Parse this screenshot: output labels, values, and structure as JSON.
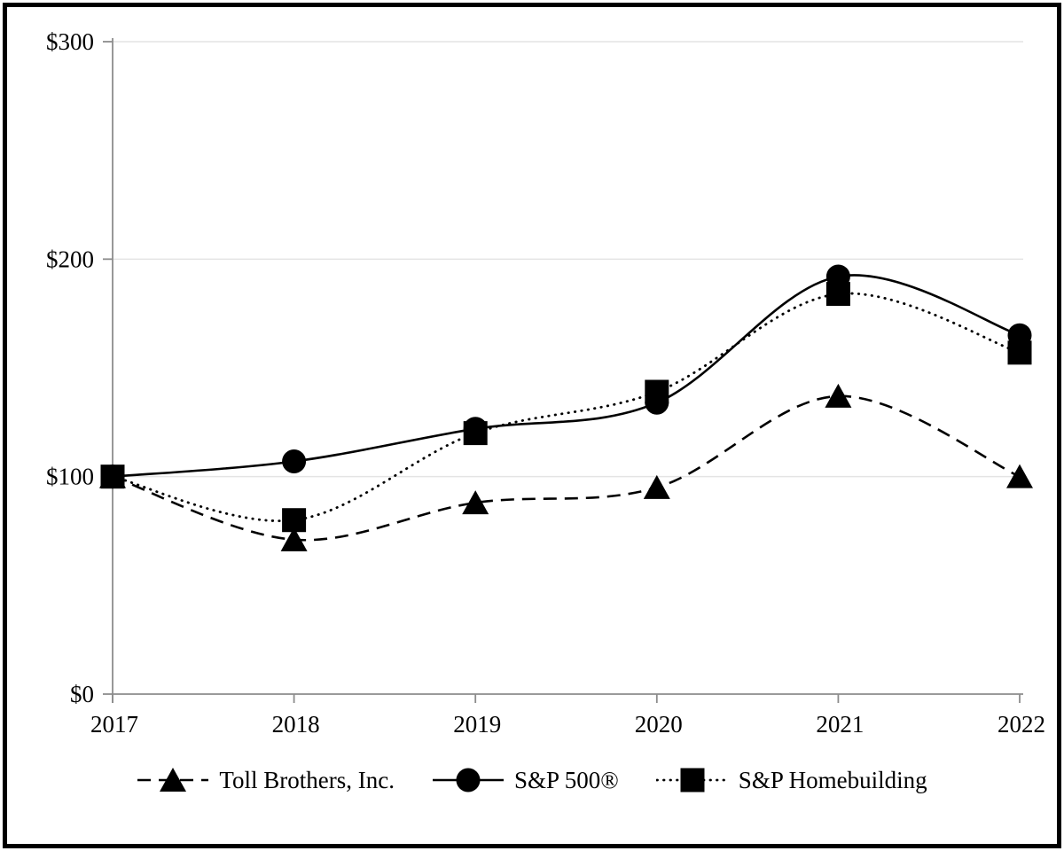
{
  "chart_data": {
    "type": "line",
    "title": "",
    "categories": [
      "2017",
      "2018",
      "2019",
      "2020",
      "2021",
      "2022"
    ],
    "y_ticks": [
      {
        "label": "$0",
        "value": 0
      },
      {
        "label": "$100",
        "value": 100
      },
      {
        "label": "$200",
        "value": 200
      },
      {
        "label": "$300",
        "value": 300
      }
    ],
    "ylim": [
      0,
      300
    ],
    "grid": "horizontal-only",
    "legend_position": "bottom-center",
    "series": [
      {
        "name": "Toll Brothers, Inc.",
        "marker": "triangle",
        "line_style": "dashed",
        "color": "#000000",
        "values": [
          100,
          71,
          88,
          95,
          137,
          100
        ]
      },
      {
        "name": "S&P 500®",
        "marker": "circle",
        "line_style": "solid",
        "color": "#000000",
        "values": [
          100,
          107,
          122,
          134,
          192,
          165
        ]
      },
      {
        "name": "S&P Homebuilding",
        "marker": "square",
        "line_style": "dotted",
        "color": "#000000",
        "values": [
          100,
          80,
          120,
          139,
          184,
          157
        ]
      }
    ],
    "colors": {
      "axis": "#8c8c8c",
      "gridline": "#e4e4e4",
      "series": "#000000",
      "frame": "#000000",
      "background": "#ffffff"
    }
  }
}
